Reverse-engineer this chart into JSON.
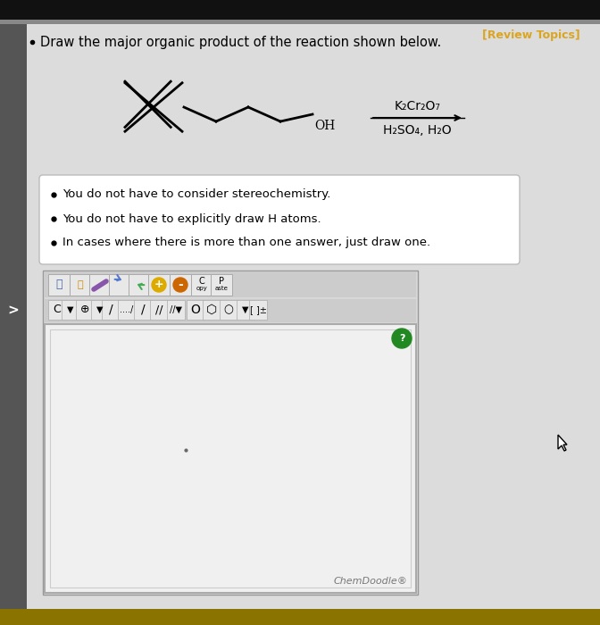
{
  "bg_outer": "#1a1a1a",
  "bg_main": "#e0e0e0",
  "bg_content": "#e8e8e8",
  "bg_white": "#f0f0f0",
  "sidebar_color": "#444444",
  "title": "Draw the major organic product of the reaction shown below.",
  "title_fontsize": 10.5,
  "bullet_points": [
    "You do not have to consider stereochemistry.",
    "You do not have to explicitly draw H atoms.",
    "In cases where there is more than one answer, just draw one."
  ],
  "review_topics_color": "#DAA520",
  "review_topics_text": "[Review Topics]",
  "reagent_line1": "K₂Cr₂O₇",
  "reagent_line2": "H₂SO₄, H₂O",
  "chemdoodle_text": "ChemDoodle®",
  "canvas_bg": "#eeeeee",
  "bottom_bar_color": "#8B7300"
}
